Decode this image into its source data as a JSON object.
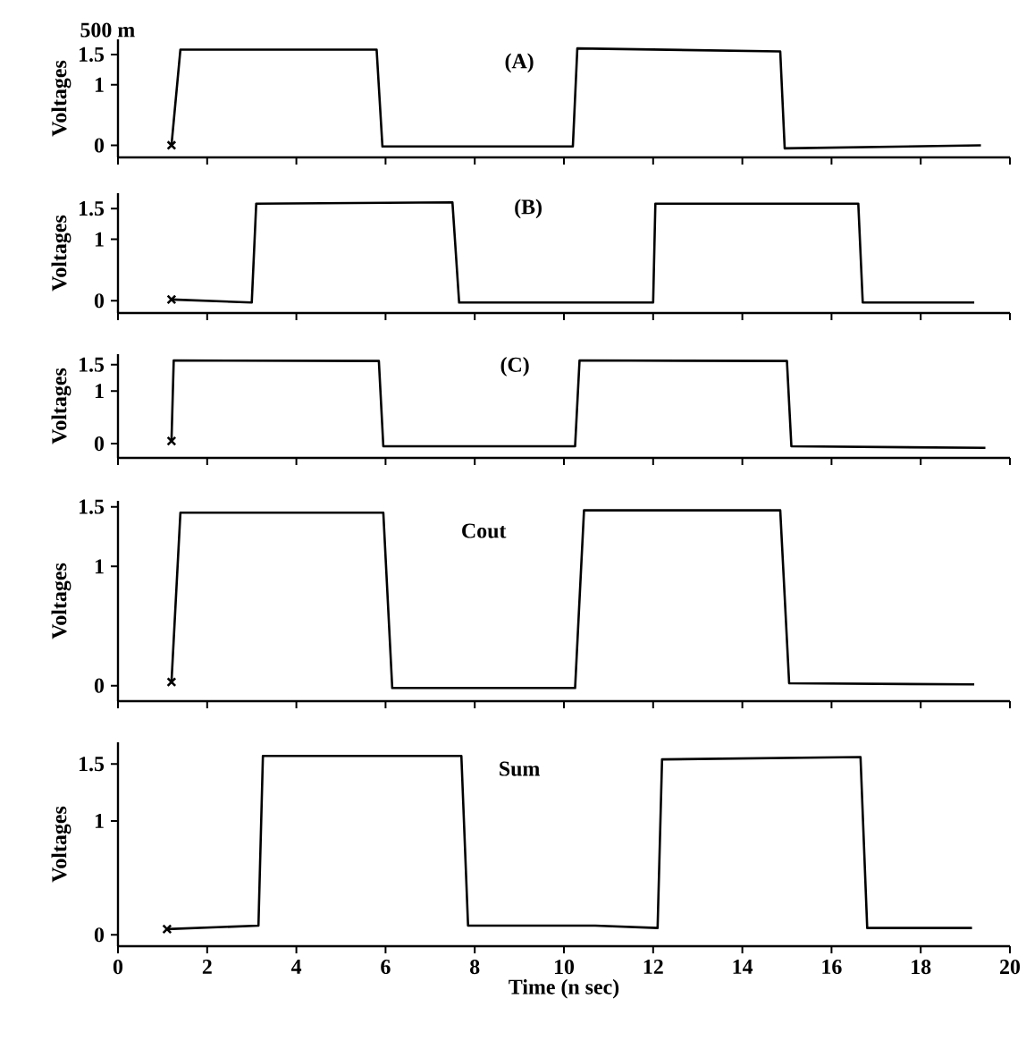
{
  "chart_data": [
    {
      "type": "line",
      "title": "(A)",
      "ylabel": "Voltages",
      "annotations": [
        "500 m"
      ],
      "xlim": [
        0,
        20
      ],
      "ylim": [
        -0.2,
        1.75
      ],
      "xticks": [
        0,
        2,
        4,
        6,
        8,
        10,
        12,
        14,
        16,
        18,
        20
      ],
      "yticks": [
        0,
        1,
        1.5
      ],
      "tick_labels": "y",
      "series": [
        {
          "color": "#000000",
          "x": [
            1.2,
            1.4,
            5.8,
            5.93,
            10.2,
            10.3,
            14.85,
            14.95,
            19.35
          ],
          "values": [
            0,
            1.58,
            1.58,
            -0.02,
            -0.02,
            1.6,
            1.55,
            -0.05,
            0
          ]
        },
        {
          "type": "scatter",
          "marker": "cross",
          "color": "#000000",
          "x": [
            1.2
          ],
          "values": [
            0
          ]
        }
      ]
    },
    {
      "type": "line",
      "title": "(B)",
      "ylabel": "Voltages",
      "xlim": [
        0,
        20
      ],
      "ylim": [
        -0.2,
        1.75
      ],
      "xticks": [
        0,
        2,
        4,
        6,
        8,
        10,
        12,
        14,
        16,
        18,
        20
      ],
      "yticks": [
        0,
        1,
        1.5
      ],
      "tick_labels": "y",
      "series": [
        {
          "color": "#000000",
          "x": [
            1.2,
            3.0,
            3.1,
            7.5,
            7.65,
            12.0,
            12.05,
            16.6,
            16.7,
            19.2
          ],
          "values": [
            0.02,
            -0.03,
            1.58,
            1.6,
            -0.03,
            -0.03,
            1.58,
            1.58,
            -0.03,
            -0.03
          ]
        },
        {
          "type": "scatter",
          "marker": "cross",
          "color": "#000000",
          "x": [
            1.2
          ],
          "values": [
            0.02
          ]
        }
      ]
    },
    {
      "type": "line",
      "title": "(C)",
      "ylabel": "Voltages",
      "xlim": [
        0,
        20
      ],
      "ylim": [
        -0.27,
        1.7
      ],
      "xticks": [
        0,
        2,
        4,
        6,
        8,
        10,
        12,
        14,
        16,
        18,
        20
      ],
      "yticks": [
        0,
        1,
        1.5
      ],
      "tick_labels": "y",
      "series": [
        {
          "color": "#000000",
          "x": [
            1.2,
            1.25,
            5.85,
            5.95,
            10.25,
            10.35,
            15.0,
            15.1,
            19.45
          ],
          "values": [
            0.05,
            1.58,
            1.57,
            -0.05,
            -0.05,
            1.58,
            1.57,
            -0.05,
            -0.08
          ]
        },
        {
          "type": "scatter",
          "marker": "cross",
          "color": "#000000",
          "x": [
            1.2
          ],
          "values": [
            0.05
          ]
        }
      ]
    },
    {
      "type": "line",
      "title": "Cout",
      "ylabel": "Voltages",
      "xlim": [
        0,
        20
      ],
      "ylim": [
        -0.13,
        1.55
      ],
      "xticks": [
        0,
        2,
        4,
        6,
        8,
        10,
        12,
        14,
        16,
        18,
        20
      ],
      "yticks": [
        0,
        1,
        1.5
      ],
      "tick_labels": "y",
      "series": [
        {
          "color": "#000000",
          "x": [
            1.2,
            1.4,
            5.95,
            6.15,
            10.25,
            10.45,
            14.85,
            15.05,
            19.2
          ],
          "values": [
            0.03,
            1.45,
            1.45,
            -0.02,
            -0.02,
            1.47,
            1.47,
            0.02,
            0.01
          ]
        },
        {
          "type": "scatter",
          "marker": "cross",
          "color": "#000000",
          "x": [
            1.2
          ],
          "values": [
            0.03
          ]
        }
      ]
    },
    {
      "type": "line",
      "title": "Sum",
      "ylabel": "Voltages",
      "xlabel": "Time (n sec)",
      "xlim": [
        0,
        20
      ],
      "ylim": [
        -0.1,
        1.69
      ],
      "xticks": [
        0,
        2,
        4,
        6,
        8,
        10,
        12,
        14,
        16,
        18,
        20
      ],
      "yticks": [
        0,
        1,
        1.5
      ],
      "series": [
        {
          "color": "#000000",
          "x": [
            1.1,
            3.15,
            3.25,
            7.7,
            7.85,
            10.7,
            12.1,
            12.2,
            16.65,
            16.8,
            19.15
          ],
          "values": [
            0.05,
            0.08,
            1.57,
            1.57,
            0.08,
            0.08,
            0.06,
            1.54,
            1.56,
            0.06,
            0.06
          ]
        },
        {
          "type": "scatter",
          "marker": "cross",
          "color": "#000000",
          "x": [
            1.1
          ],
          "values": [
            0.05
          ]
        }
      ]
    }
  ]
}
